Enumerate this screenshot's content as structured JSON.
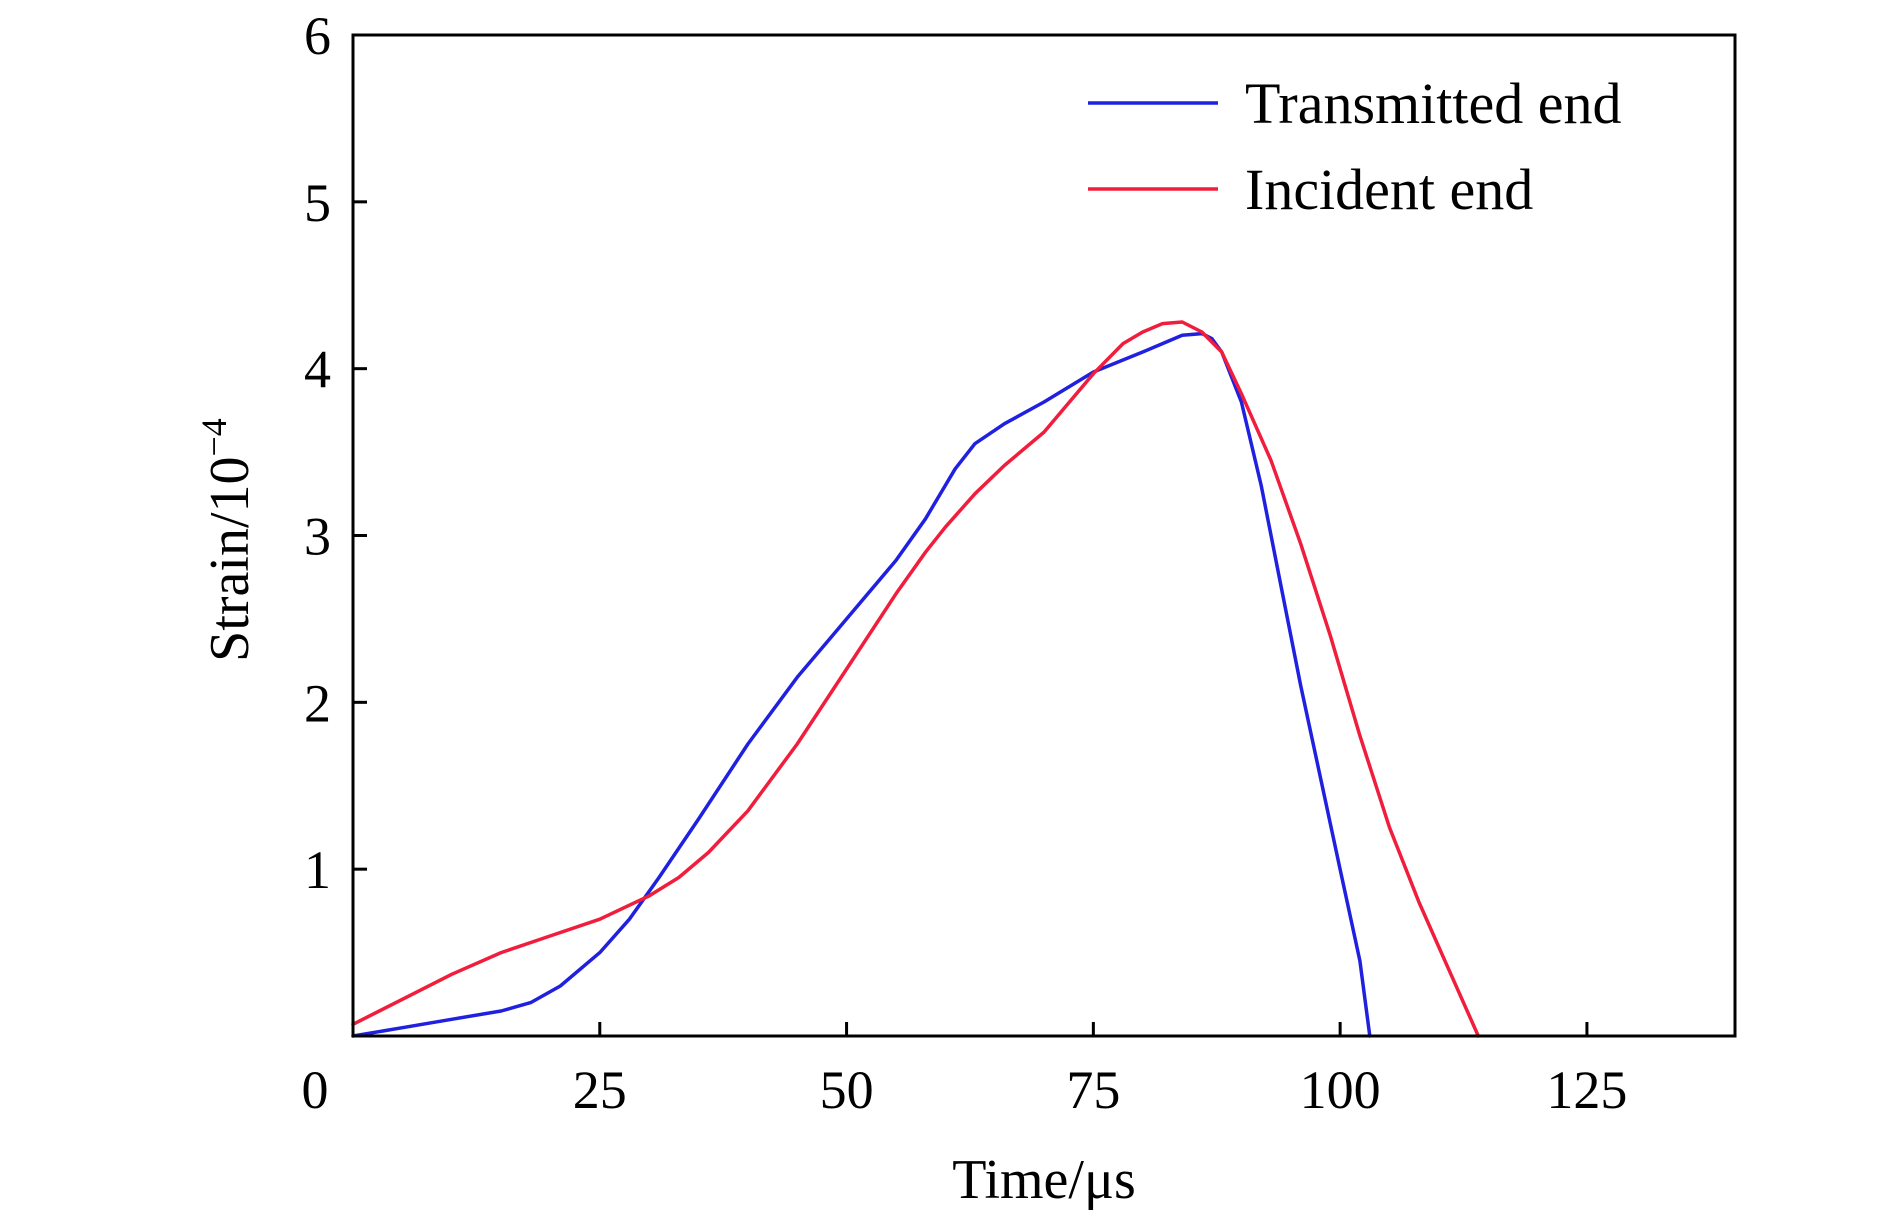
{
  "chart_data": {
    "type": "line",
    "xlabel": "Time/μs",
    "ylabel": "Strain/10",
    "ylabel_exponent": "−4",
    "xlim": [
      0,
      140
    ],
    "ylim": [
      0,
      6
    ],
    "x_origin_label": "0",
    "xticks": [
      25,
      50,
      75,
      100,
      125
    ],
    "yticks": [
      1,
      2,
      3,
      4,
      5,
      6
    ],
    "grid": false,
    "legend_position": "top-right",
    "series": [
      {
        "name": "Transmitted end",
        "color": "#2020e0",
        "points": [
          [
            0,
            0.0
          ],
          [
            5,
            0.05
          ],
          [
            10,
            0.1
          ],
          [
            15,
            0.15
          ],
          [
            18,
            0.2
          ],
          [
            21,
            0.3
          ],
          [
            25,
            0.5
          ],
          [
            28,
            0.7
          ],
          [
            31,
            0.95
          ],
          [
            35,
            1.3
          ],
          [
            40,
            1.75
          ],
          [
            45,
            2.15
          ],
          [
            50,
            2.5
          ],
          [
            55,
            2.85
          ],
          [
            58,
            3.1
          ],
          [
            61,
            3.4
          ],
          [
            63,
            3.55
          ],
          [
            66,
            3.67
          ],
          [
            70,
            3.8
          ],
          [
            75,
            3.98
          ],
          [
            80,
            4.1
          ],
          [
            82,
            4.15
          ],
          [
            84,
            4.2
          ],
          [
            86,
            4.21
          ],
          [
            87,
            4.18
          ],
          [
            88,
            4.1
          ],
          [
            90,
            3.8
          ],
          [
            92,
            3.3
          ],
          [
            94,
            2.7
          ],
          [
            96,
            2.1
          ],
          [
            98,
            1.55
          ],
          [
            100,
            1.0
          ],
          [
            102,
            0.45
          ],
          [
            103,
            0.0
          ]
        ]
      },
      {
        "name": "Incident end",
        "color": "#f01e3c",
        "points": [
          [
            0,
            0.07
          ],
          [
            5,
            0.22
          ],
          [
            10,
            0.37
          ],
          [
            15,
            0.5
          ],
          [
            20,
            0.6
          ],
          [
            25,
            0.7
          ],
          [
            30,
            0.84
          ],
          [
            33,
            0.95
          ],
          [
            36,
            1.1
          ],
          [
            40,
            1.35
          ],
          [
            45,
            1.75
          ],
          [
            50,
            2.2
          ],
          [
            55,
            2.65
          ],
          [
            58,
            2.9
          ],
          [
            60,
            3.05
          ],
          [
            63,
            3.25
          ],
          [
            66,
            3.42
          ],
          [
            70,
            3.62
          ],
          [
            75,
            3.97
          ],
          [
            78,
            4.15
          ],
          [
            80,
            4.22
          ],
          [
            82,
            4.27
          ],
          [
            84,
            4.28
          ],
          [
            86,
            4.22
          ],
          [
            88,
            4.1
          ],
          [
            90,
            3.85
          ],
          [
            93,
            3.45
          ],
          [
            96,
            2.95
          ],
          [
            99,
            2.4
          ],
          [
            102,
            1.8
          ],
          [
            105,
            1.25
          ],
          [
            108,
            0.8
          ],
          [
            111,
            0.4
          ],
          [
            114,
            0.0
          ]
        ]
      }
    ]
  }
}
